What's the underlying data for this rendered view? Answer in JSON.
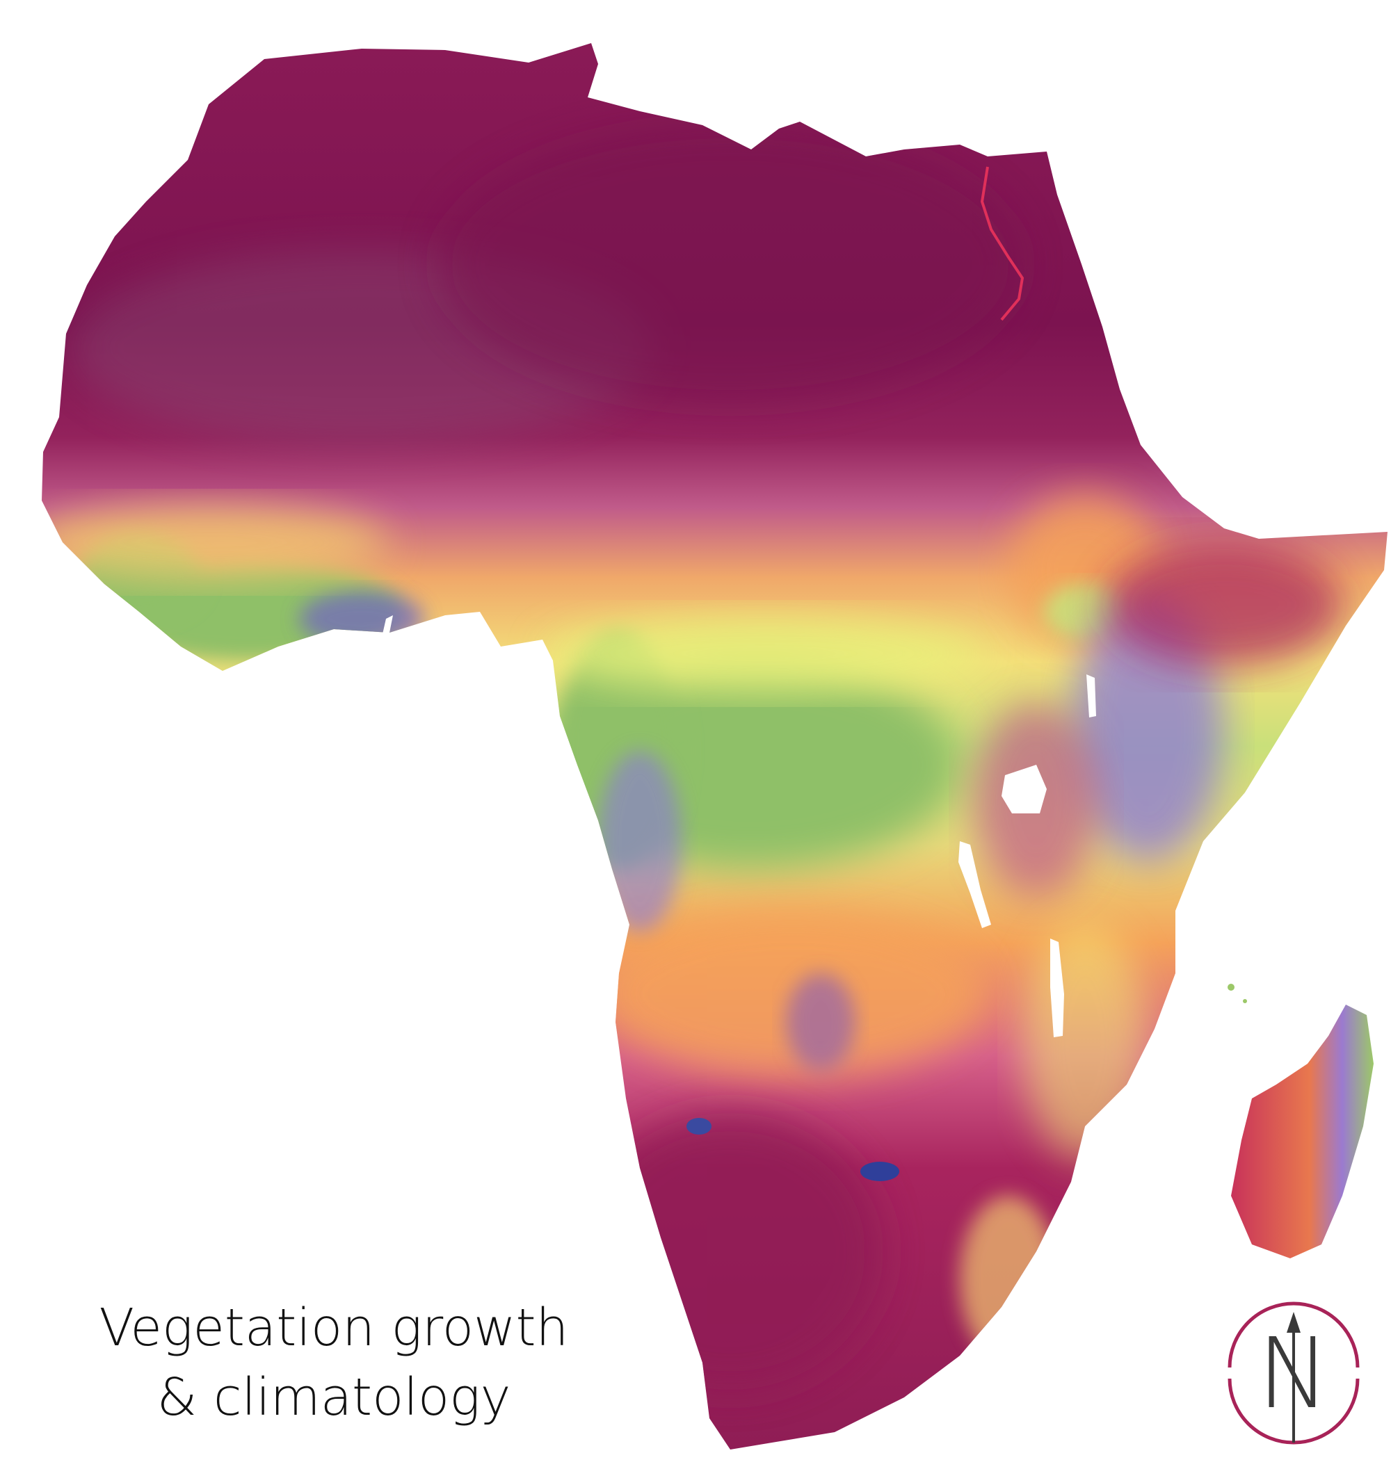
{
  "map": {
    "title_line1": "Vegetation growth",
    "title_line2": "& climatology",
    "north_arrow_label": "N",
    "palette": {
      "desert_dark": "#7c1350",
      "dry_magenta": "#a8245e",
      "sahel_pink": "#c05b8a",
      "mauve": "#b07aa8",
      "orange": "#f5a25a",
      "yellow": "#f3ea72",
      "green": "#8fc068",
      "violet": "#8a78d8",
      "water": "#ffffff",
      "compass_ring": "#a82358",
      "compass_letter": "#3a3a3a"
    }
  }
}
